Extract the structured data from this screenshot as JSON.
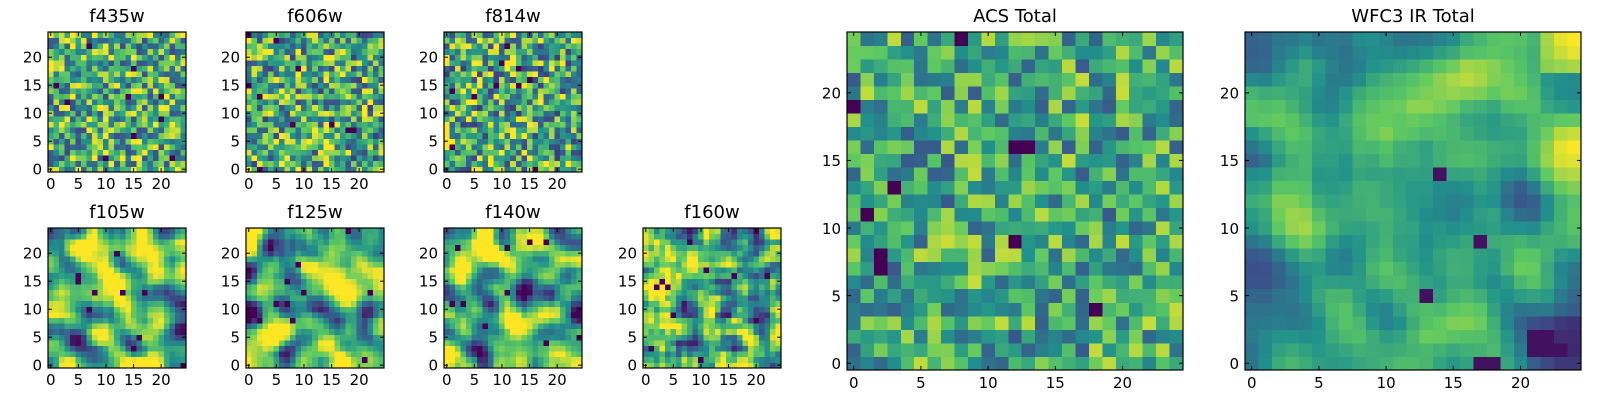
{
  "figure": {
    "background": "#ffffff"
  },
  "colormap": {
    "name": "viridis",
    "stops": [
      "#440154",
      "#3b528b",
      "#21918c",
      "#5ec962",
      "#fde725"
    ]
  },
  "chart_data": [
    {
      "type": "heatmap",
      "id": "f435w",
      "title": "f435w",
      "grid_size": 25,
      "xlim": [
        0,
        24
      ],
      "ylim": [
        0,
        24
      ],
      "x_ticks": [
        0,
        5,
        10,
        15,
        20
      ],
      "y_ticks": [
        0,
        5,
        10,
        15,
        20
      ],
      "seed": 435,
      "smoothing": 0,
      "value_bias": 0.62,
      "value_spread": 0.24,
      "colormap": "viridis"
    },
    {
      "type": "heatmap",
      "id": "f606w",
      "title": "f606w",
      "grid_size": 25,
      "xlim": [
        0,
        24
      ],
      "ylim": [
        0,
        24
      ],
      "x_ticks": [
        0,
        5,
        10,
        15,
        20
      ],
      "y_ticks": [
        0,
        5,
        10,
        15,
        20
      ],
      "seed": 606,
      "smoothing": 0,
      "value_bias": 0.62,
      "value_spread": 0.24,
      "colormap": "viridis"
    },
    {
      "type": "heatmap",
      "id": "f814w",
      "title": "f814w",
      "grid_size": 25,
      "xlim": [
        0,
        24
      ],
      "ylim": [
        0,
        24
      ],
      "x_ticks": [
        0,
        5,
        10,
        15,
        20
      ],
      "y_ticks": [
        0,
        5,
        10,
        15,
        20
      ],
      "seed": 814,
      "smoothing": 0,
      "value_bias": 0.6,
      "value_spread": 0.25,
      "colormap": "viridis"
    },
    {
      "type": "heatmap",
      "id": "f105w",
      "title": "f105w",
      "grid_size": 25,
      "xlim": [
        0,
        24
      ],
      "ylim": [
        0,
        24
      ],
      "x_ticks": [
        0,
        5,
        10,
        15,
        20
      ],
      "y_ticks": [
        0,
        5,
        10,
        15,
        20
      ],
      "seed": 105,
      "smoothing": 2,
      "value_bias": 0.68,
      "value_spread": 0.26,
      "colormap": "viridis"
    },
    {
      "type": "heatmap",
      "id": "f125w",
      "title": "f125w",
      "grid_size": 25,
      "xlim": [
        0,
        24
      ],
      "ylim": [
        0,
        24
      ],
      "x_ticks": [
        0,
        5,
        10,
        15,
        20
      ],
      "y_ticks": [
        0,
        5,
        10,
        15,
        20
      ],
      "seed": 125,
      "smoothing": 2,
      "value_bias": 0.65,
      "value_spread": 0.27,
      "colormap": "viridis"
    },
    {
      "type": "heatmap",
      "id": "f140w",
      "title": "f140w",
      "grid_size": 25,
      "xlim": [
        0,
        24
      ],
      "ylim": [
        0,
        24
      ],
      "x_ticks": [
        0,
        5,
        10,
        15,
        20
      ],
      "y_ticks": [
        0,
        5,
        10,
        15,
        20
      ],
      "seed": 140,
      "smoothing": 2,
      "value_bias": 0.65,
      "value_spread": 0.27,
      "colormap": "viridis"
    },
    {
      "type": "heatmap",
      "id": "f160w",
      "title": "f160w",
      "grid_size": 25,
      "xlim": [
        0,
        24
      ],
      "ylim": [
        0,
        24
      ],
      "x_ticks": [
        0,
        5,
        10,
        15,
        20
      ],
      "y_ticks": [
        0,
        5,
        10,
        15,
        20
      ],
      "seed": 160,
      "smoothing": 1,
      "value_bias": 0.64,
      "value_spread": 0.25,
      "colormap": "viridis"
    },
    {
      "type": "heatmap",
      "id": "acs-total",
      "title": "ACS Total",
      "grid_size": 25,
      "xlim": [
        0,
        24
      ],
      "ylim": [
        0,
        24
      ],
      "x_ticks": [
        0,
        5,
        10,
        15,
        20
      ],
      "y_ticks": [
        0,
        5,
        10,
        15,
        20
      ],
      "seed": 1001,
      "smoothing": 0,
      "value_bias": 0.6,
      "value_spread": 0.18,
      "colormap": "viridis"
    },
    {
      "type": "heatmap",
      "id": "wfc3-ir-total",
      "title": "WFC3 IR Total",
      "grid_size": 25,
      "xlim": [
        0,
        24
      ],
      "ylim": [
        0,
        24
      ],
      "x_ticks": [
        0,
        5,
        10,
        15,
        20
      ],
      "y_ticks": [
        0,
        5,
        10,
        15,
        20
      ],
      "seed": 2002,
      "smoothing": 2,
      "value_bias": 0.58,
      "value_spread": 0.14,
      "gradient_to_top_right": true,
      "colormap": "viridis"
    }
  ]
}
